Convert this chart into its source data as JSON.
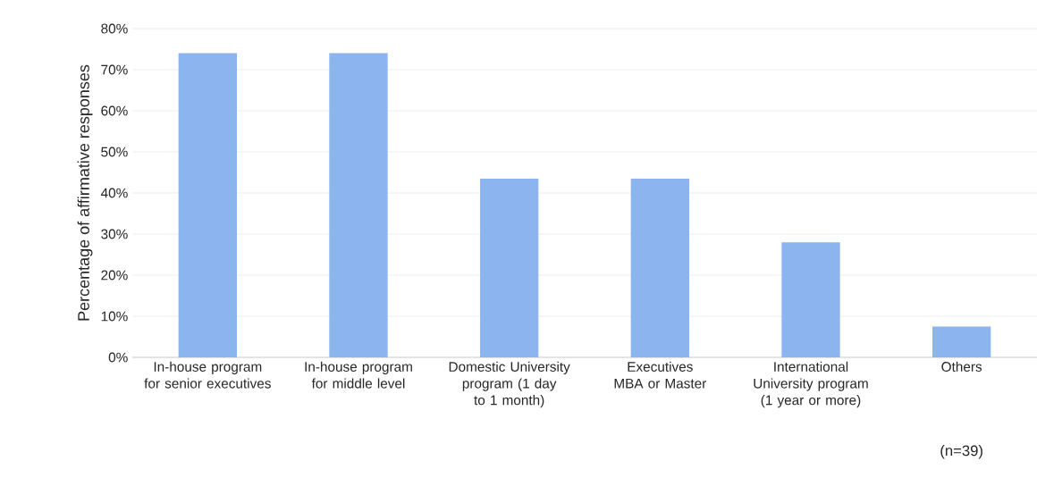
{
  "chart_data": {
    "type": "bar",
    "ylabel": "Percentage of affirmative responses",
    "categories": [
      "In-house program for senior executives",
      "In-house program for middle level",
      "Domestic University program (1 day to 1 month)",
      "Executives MBA or Master",
      "International University program (1 year or more)",
      "Others"
    ],
    "values": [
      74,
      74,
      43.5,
      43.5,
      28,
      7.5
    ],
    "color": "#8cb4ee",
    "ylim": [
      0,
      80
    ],
    "yticks": [
      {
        "value": 0,
        "label": "0%"
      },
      {
        "value": 10,
        "label": "10%"
      },
      {
        "value": 20,
        "label": "20%"
      },
      {
        "value": 30,
        "label": "30%"
      },
      {
        "value": 40,
        "label": "40%"
      },
      {
        "value": 50,
        "label": "50%"
      },
      {
        "value": 60,
        "label": "60%"
      },
      {
        "value": 70,
        "label": "70%"
      },
      {
        "value": 80,
        "label": "80%"
      }
    ],
    "grid": "y",
    "annotations": [
      "(n=39)"
    ]
  }
}
